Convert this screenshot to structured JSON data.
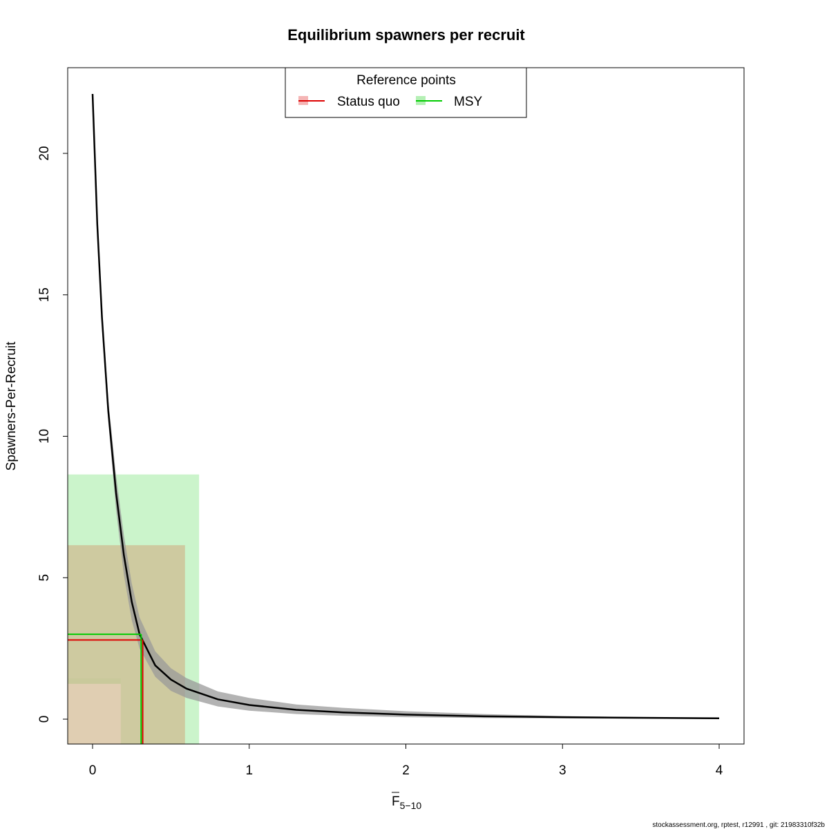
{
  "chart_data": {
    "type": "line",
    "title": "Equilibrium spawners per recruit",
    "xlabel": "F",
    "xlabel_subscript": "5−10",
    "ylabel": "Spawners-Per-Recruit",
    "xlim": [
      0,
      4
    ],
    "ylim": [
      -0.9,
      23.0
    ],
    "x_ticks": [
      0,
      1,
      2,
      3,
      4
    ],
    "y_ticks": [
      0,
      5,
      10,
      15,
      20
    ],
    "legend": {
      "title": "Reference points",
      "position": "top-center",
      "entries": [
        {
          "label": "Status quo",
          "color": "#dd0000",
          "band_color": "#f5b5b5"
        },
        {
          "label": "MSY",
          "color": "#00cc00",
          "band_color": "#b5f0b5"
        }
      ]
    },
    "curve": {
      "x": [
        0.0,
        0.03,
        0.06,
        0.1,
        0.15,
        0.2,
        0.25,
        0.3,
        0.4,
        0.5,
        0.6,
        0.8,
        1.0,
        1.3,
        1.6,
        2.0,
        2.5,
        3.0,
        3.5,
        4.0
      ],
      "y": [
        22.1,
        17.5,
        14.2,
        10.9,
        8.0,
        5.8,
        4.15,
        3.0,
        1.9,
        1.4,
        1.08,
        0.7,
        0.5,
        0.33,
        0.24,
        0.16,
        0.1,
        0.07,
        0.05,
        0.03
      ],
      "lower": [
        22.1,
        17.2,
        13.8,
        10.5,
        7.4,
        5.1,
        3.5,
        2.5,
        1.5,
        1.0,
        0.75,
        0.45,
        0.3,
        0.18,
        0.12,
        0.07,
        0.04,
        0.025,
        0.015,
        0.01
      ],
      "upper": [
        22.1,
        17.8,
        14.6,
        11.3,
        8.6,
        6.5,
        4.8,
        3.6,
        2.4,
        1.8,
        1.45,
        0.98,
        0.75,
        0.52,
        0.4,
        0.28,
        0.18,
        0.11,
        0.07,
        0.04
      ],
      "color": "#000000",
      "band_color": "#999999"
    },
    "reference_points": [
      {
        "name": "Status quo",
        "F": 0.32,
        "SPR": 2.8,
        "F_range": [
          -0.16,
          0.59
        ],
        "SPR_range": [
          -0.9,
          6.15
        ],
        "color": "#dd0000"
      },
      {
        "name": "MSY",
        "F": 0.31,
        "SPR": 3.0,
        "F_range": [
          -0.16,
          0.68
        ],
        "SPR_range": [
          -0.9,
          8.65
        ],
        "color": "#00cc00",
        "inner_cutout": {
          "F_max": 0.18,
          "SPR_max": 1.25
        }
      }
    ]
  },
  "footer": "stockassessment.org, rptest, r12991 , git: 21983310f32b"
}
